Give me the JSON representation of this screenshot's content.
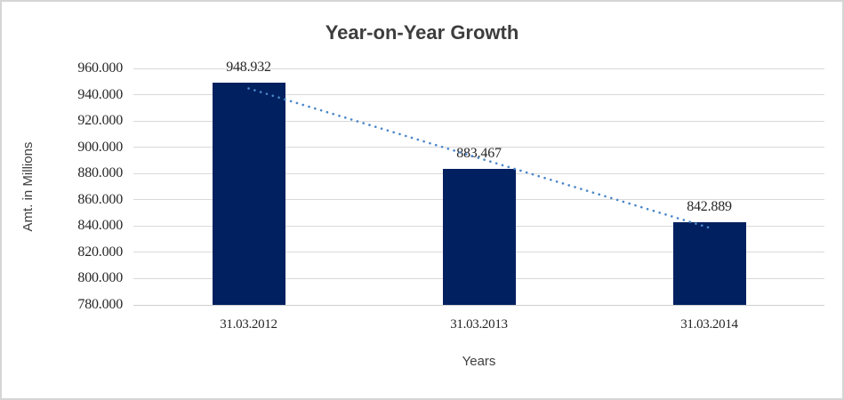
{
  "chart_data": {
    "type": "bar",
    "title": "Year-on-Year Growth",
    "xlabel": "Years",
    "ylabel": "Amt. in Millions",
    "categories": [
      "31.03.2012",
      "31.03.2013",
      "31.03.2014"
    ],
    "series": [
      {
        "name": "Amt. in Millions",
        "values": [
          948.932,
          883.467,
          842.889
        ]
      }
    ],
    "data_labels": [
      "948.932",
      "883.467",
      "842.889"
    ],
    "y_axis": {
      "min": 780,
      "max": 960,
      "step": 20,
      "tick_labels": [
        "960.000",
        "940.000",
        "920.000",
        "900.000",
        "880.000",
        "860.000",
        "840.000",
        "820.000",
        "800.000",
        "780.000"
      ]
    },
    "grid": "horizontal-major",
    "legend": "none",
    "trendline": {
      "type": "linear",
      "style": "dotted",
      "applies_to": "Amt. in Millions"
    },
    "colors": {
      "bar": "#002060",
      "trendline": "#4a86c9",
      "gridline": "#d9d9d9",
      "axis_line": "#cfcfcf",
      "number_text": "#262626",
      "title_text": "#3d3d3d",
      "axis_title_text": "#3f3f3f"
    }
  }
}
